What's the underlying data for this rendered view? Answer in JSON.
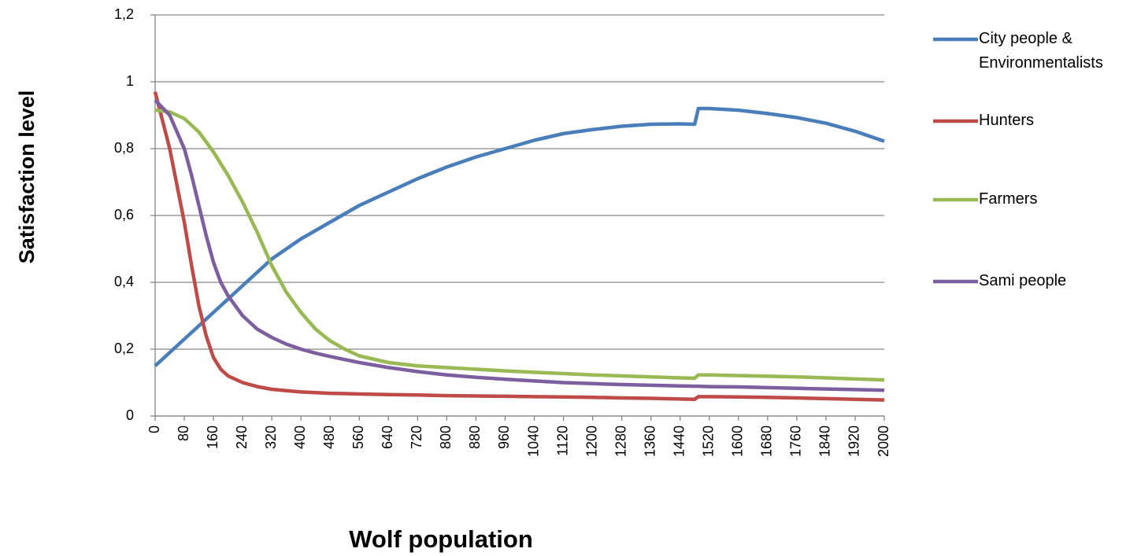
{
  "chart_data": {
    "type": "line",
    "x_label": "Wolf population",
    "y_label": "Satisfaction level",
    "x": [
      0,
      40,
      80,
      100,
      120,
      140,
      160,
      180,
      200,
      240,
      280,
      320,
      360,
      400,
      440,
      480,
      520,
      560,
      640,
      720,
      800,
      880,
      960,
      1040,
      1120,
      1200,
      1280,
      1360,
      1440,
      1480,
      1490,
      1520,
      1600,
      1680,
      1760,
      1840,
      1920,
      2000
    ],
    "series": [
      {
        "name": "City people & Environmentalists",
        "color": "#4a7ebb",
        "values": [
          0.15,
          0.19,
          0.23,
          0.25,
          0.27,
          0.29,
          0.31,
          0.33,
          0.35,
          0.39,
          0.43,
          0.47,
          0.5,
          0.53,
          0.555,
          0.58,
          0.605,
          0.63,
          0.67,
          0.71,
          0.745,
          0.775,
          0.8,
          0.825,
          0.845,
          0.857,
          0.867,
          0.873,
          0.874,
          0.873,
          0.92,
          0.92,
          0.915,
          0.905,
          0.893,
          0.876,
          0.852,
          0.822
        ]
      },
      {
        "name": "Hunters",
        "color": "#be4b48",
        "values": [
          0.97,
          0.8,
          0.58,
          0.45,
          0.33,
          0.24,
          0.175,
          0.14,
          0.12,
          0.1,
          0.088,
          0.08,
          0.076,
          0.072,
          0.07,
          0.068,
          0.067,
          0.066,
          0.064,
          0.063,
          0.061,
          0.06,
          0.059,
          0.058,
          0.057,
          0.056,
          0.054,
          0.053,
          0.051,
          0.05,
          0.058,
          0.058,
          0.057,
          0.056,
          0.054,
          0.052,
          0.05,
          0.048
        ]
      },
      {
        "name": "Farmers",
        "color": "#98b954",
        "values": [
          0.915,
          0.91,
          0.89,
          0.87,
          0.85,
          0.82,
          0.79,
          0.755,
          0.72,
          0.64,
          0.55,
          0.45,
          0.37,
          0.31,
          0.26,
          0.225,
          0.2,
          0.18,
          0.16,
          0.15,
          0.145,
          0.14,
          0.135,
          0.131,
          0.127,
          0.123,
          0.12,
          0.117,
          0.114,
          0.113,
          0.123,
          0.123,
          0.121,
          0.119,
          0.117,
          0.114,
          0.111,
          0.108
        ]
      },
      {
        "name": "Sami people",
        "color": "#7d5fa0",
        "values": [
          0.945,
          0.9,
          0.8,
          0.72,
          0.63,
          0.54,
          0.46,
          0.4,
          0.36,
          0.3,
          0.26,
          0.235,
          0.215,
          0.2,
          0.188,
          0.178,
          0.169,
          0.16,
          0.145,
          0.133,
          0.123,
          0.116,
          0.11,
          0.105,
          0.1,
          0.097,
          0.094,
          0.092,
          0.09,
          0.089,
          0.089,
          0.088,
          0.087,
          0.085,
          0.083,
          0.081,
          0.079,
          0.077
        ]
      }
    ],
    "xlim": [
      0,
      2000
    ],
    "xticks": [
      0,
      80,
      160,
      240,
      320,
      400,
      480,
      560,
      640,
      720,
      800,
      880,
      960,
      1040,
      1120,
      1200,
      1280,
      1360,
      1440,
      1520,
      1600,
      1680,
      1760,
      1840,
      1920,
      2000
    ],
    "ylim": [
      0,
      1.2
    ],
    "yticks": [
      0,
      {
        "value": 0.2,
        "label": "0,2"
      },
      {
        "value": 0.4,
        "label": "0,4"
      },
      {
        "value": 0.6,
        "label": "0,6"
      },
      {
        "value": 0.8,
        "label": "0,8"
      },
      1,
      {
        "value": 1.2,
        "label": "1,2"
      }
    ],
    "grid": true,
    "legend": "right"
  }
}
